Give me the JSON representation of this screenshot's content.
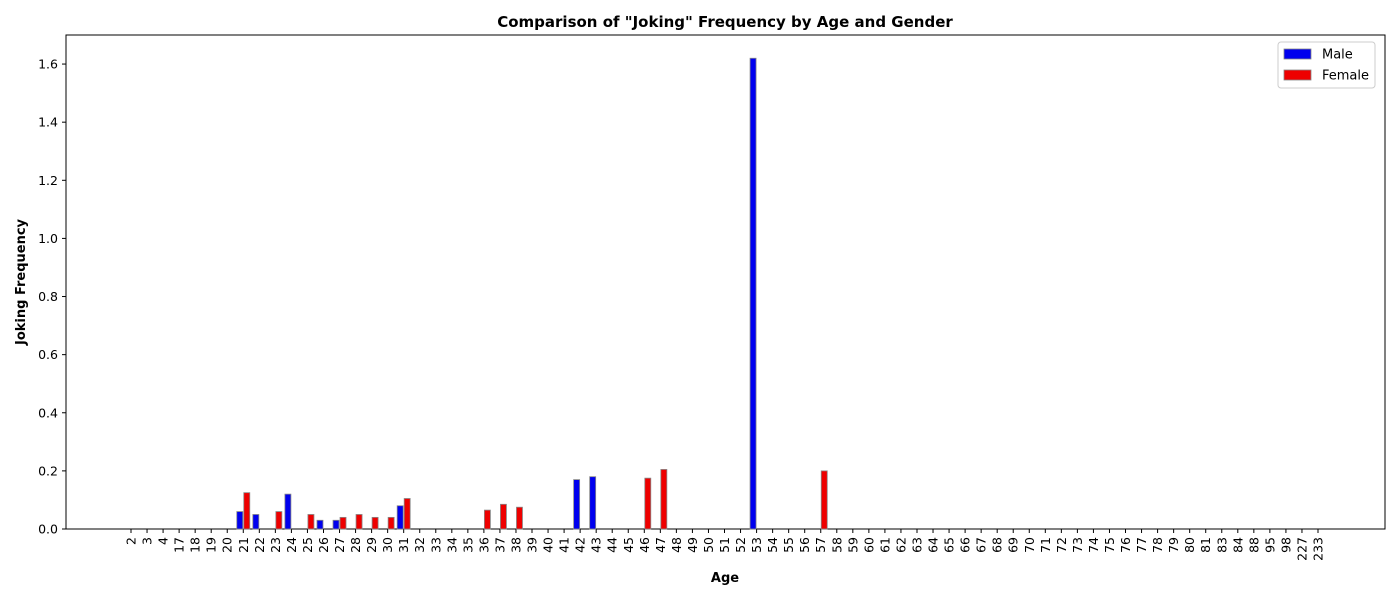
{
  "chart_data": {
    "type": "bar",
    "title": "Comparison of \"Joking\" Frequency by Age and Gender",
    "xlabel": "Age",
    "ylabel": "Joking Frequency",
    "ylim": [
      0,
      1.7
    ],
    "yticks": [
      0.0,
      0.2,
      0.4,
      0.6,
      0.8,
      1.0,
      1.2,
      1.4,
      1.6
    ],
    "ytick_labels": [
      "0.0",
      "0.2",
      "0.4",
      "0.6",
      "0.8",
      "1.0",
      "1.2",
      "1.4",
      "1.6"
    ],
    "grid": false,
    "legend_position": "top-right",
    "categories": [
      "2",
      "3",
      "4",
      "17",
      "18",
      "19",
      "20",
      "21",
      "22",
      "23",
      "24",
      "25",
      "26",
      "27",
      "28",
      "29",
      "30",
      "31",
      "32",
      "33",
      "34",
      "35",
      "36",
      "37",
      "38",
      "39",
      "40",
      "41",
      "42",
      "43",
      "44",
      "45",
      "46",
      "47",
      "48",
      "49",
      "50",
      "51",
      "52",
      "53",
      "54",
      "55",
      "56",
      "57",
      "58",
      "59",
      "60",
      "61",
      "62",
      "63",
      "64",
      "65",
      "66",
      "67",
      "68",
      "69",
      "70",
      "71",
      "72",
      "73",
      "74",
      "75",
      "76",
      "77",
      "78",
      "79",
      "80",
      "81",
      "83",
      "84",
      "88",
      "95",
      "98",
      "227",
      "233"
    ],
    "series": [
      {
        "name": "Male",
        "color": "#0000ee",
        "values": [
          0,
          0,
          0,
          0,
          0,
          0,
          0,
          0.06,
          0.05,
          0,
          0.12,
          0,
          0.03,
          0.03,
          0,
          0,
          0,
          0.08,
          0,
          0,
          0,
          0,
          0,
          0,
          0,
          0,
          0,
          0,
          0.17,
          0.18,
          0,
          0,
          0,
          0,
          0,
          0,
          0,
          0,
          0,
          1.62,
          0,
          0,
          0,
          0,
          0,
          0,
          0,
          0,
          0,
          0,
          0,
          0,
          0,
          0,
          0,
          0,
          0,
          0,
          0,
          0,
          0,
          0,
          0,
          0,
          0,
          0,
          0,
          0,
          0,
          0,
          0,
          0,
          0,
          0,
          0
        ]
      },
      {
        "name": "Female",
        "color": "#ee0000",
        "values": [
          0,
          0,
          0,
          0,
          0,
          0,
          0,
          0.125,
          0,
          0.06,
          0,
          0.05,
          0,
          0.04,
          0.05,
          0.04,
          0.04,
          0.105,
          0,
          0,
          0,
          0,
          0.065,
          0.085,
          0.075,
          0,
          0,
          0,
          0,
          0,
          0,
          0,
          0.175,
          0.205,
          0,
          0,
          0,
          0,
          0,
          0,
          0,
          0,
          0,
          0.2,
          0,
          0,
          0,
          0,
          0,
          0,
          0,
          0,
          0,
          0,
          0,
          0,
          0,
          0,
          0,
          0,
          0,
          0,
          0,
          0,
          0,
          0,
          0,
          0,
          0,
          0,
          0,
          0,
          0,
          0,
          0
        ]
      }
    ]
  }
}
